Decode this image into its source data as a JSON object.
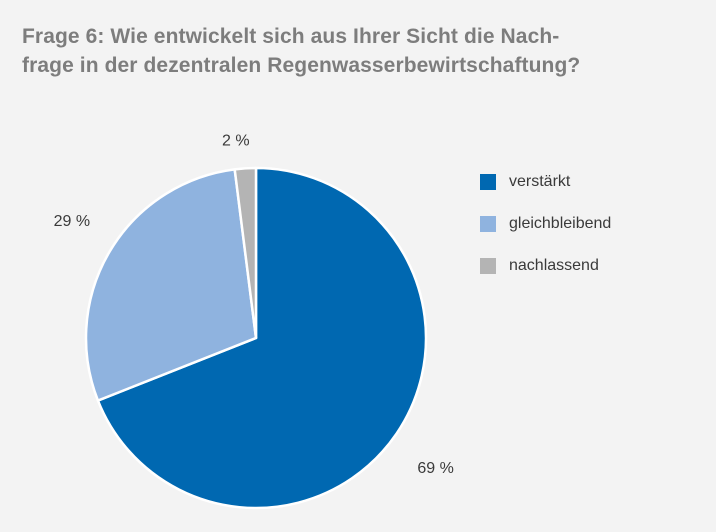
{
  "title_lines": [
    "Frage 6: Wie entwickelt sich aus Ihrer Sicht die Nach-",
    "frage in der dezentralen Regenwasserbewirtschaftung?"
  ],
  "chart_data": {
    "type": "pie",
    "title": "Frage 6: Wie entwickelt sich aus Ihrer Sicht die Nachfrage in der dezentralen Regenwasserbewirtschaftung?",
    "slices": [
      {
        "name": "verstärkt",
        "value": 69,
        "label": "69 %",
        "color": "#0068b1"
      },
      {
        "name": "gleichbleibend",
        "value": 29,
        "label": "29 %",
        "color": "#8fb3df"
      },
      {
        "name": "nachlassend",
        "value": 2,
        "label": "2 %",
        "color": "#b4b4b4"
      }
    ],
    "legend_position": "right"
  }
}
